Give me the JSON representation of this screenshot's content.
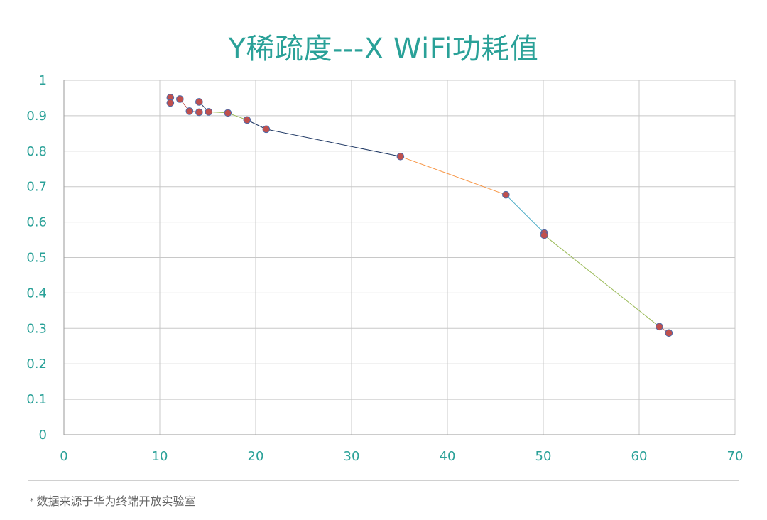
{
  "title": "Y稀疏度---X WiFi功耗值",
  "footnote": "数据来源于华为终端开放实验室",
  "footnote_marker": "*",
  "colors": {
    "title": "#2aa198",
    "tick_label": "#2aa198",
    "grid": "#c8c8c8",
    "marker_fill": "#c0504d",
    "marker_edge": "#4f6aa8"
  },
  "chart_data": {
    "type": "scatter",
    "title": "Y稀疏度---X WiFi功耗值",
    "xlabel": "",
    "ylabel": "",
    "xlim": [
      0,
      70
    ],
    "ylim": [
      0,
      1
    ],
    "grid": true,
    "x_ticks": [
      0,
      10,
      20,
      30,
      40,
      50,
      60,
      70
    ],
    "y_ticks": [
      "0",
      "0.1",
      "0.2",
      "0.3",
      "0.4",
      "0.5",
      "0.6",
      "0.7",
      "0.8",
      "0.9",
      "1"
    ],
    "points": [
      {
        "x": 11.1,
        "y": 0.951
      },
      {
        "x": 11.1,
        "y": 0.936
      },
      {
        "x": 12.1,
        "y": 0.947
      },
      {
        "x": 13.1,
        "y": 0.913
      },
      {
        "x": 14.1,
        "y": 0.91
      },
      {
        "x": 14.1,
        "y": 0.939
      },
      {
        "x": 15.1,
        "y": 0.911
      },
      {
        "x": 17.1,
        "y": 0.908
      },
      {
        "x": 19.1,
        "y": 0.888
      },
      {
        "x": 21.1,
        "y": 0.862
      },
      {
        "x": 35.1,
        "y": 0.785
      },
      {
        "x": 46.1,
        "y": 0.677
      },
      {
        "x": 50.1,
        "y": 0.569
      },
      {
        "x": 50.1,
        "y": 0.563
      },
      {
        "x": 62.1,
        "y": 0.305
      },
      {
        "x": 63.1,
        "y": 0.287
      }
    ],
    "segments": [
      {
        "from": 2,
        "to": 3,
        "color": "#c0504d"
      },
      {
        "from": 3,
        "to": 4,
        "color": "#c0504d"
      },
      {
        "from": 5,
        "to": 6,
        "color": "#1f3864"
      },
      {
        "from": 6,
        "to": 7,
        "color": "#9bbb59"
      },
      {
        "from": 7,
        "to": 8,
        "color": "#9bbb59"
      },
      {
        "from": 8,
        "to": 9,
        "color": "#1f3864"
      },
      {
        "from": 9,
        "to": 10,
        "color": "#1f3864"
      },
      {
        "from": 10,
        "to": 11,
        "color": "#f79646"
      },
      {
        "from": 11,
        "to": 12,
        "color": "#4bacc6"
      },
      {
        "from": 13,
        "to": 14,
        "color": "#9bbb59"
      },
      {
        "from": 14,
        "to": 15,
        "color": "#c0504d"
      }
    ]
  }
}
